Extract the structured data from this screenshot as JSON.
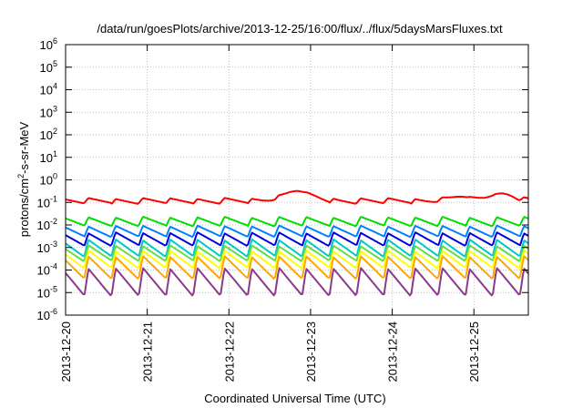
{
  "chart_data": {
    "type": "line",
    "title": "/data/run/goesPlots/archive/2013-12-25/16:00/flux/../flux/5daysMarsFluxes.txt",
    "xlabel": "Coordinated Universal Time (UTC)",
    "ylabel": {
      "base": "protons/cm",
      "sup": "2",
      "rest": "-s-sr-MeV"
    },
    "y_scale": "log",
    "ylim_exponents": [
      -6,
      6
    ],
    "y_ticks": [
      {
        "base": "10",
        "exp": "6",
        "value": 1000000
      },
      {
        "base": "10",
        "exp": "5",
        "value": 100000
      },
      {
        "base": "10",
        "exp": "4",
        "value": 10000
      },
      {
        "base": "10",
        "exp": "3",
        "value": 1000
      },
      {
        "base": "10",
        "exp": "2",
        "value": 100
      },
      {
        "base": "10",
        "exp": "1",
        "value": 10
      },
      {
        "base": "10",
        "exp": "0",
        "value": 1
      },
      {
        "base": "10",
        "exp": "-1",
        "value": 0.1
      },
      {
        "base": "10",
        "exp": "-2",
        "value": 0.01
      },
      {
        "base": "10",
        "exp": "-3",
        "value": 0.001
      },
      {
        "base": "10",
        "exp": "-4",
        "value": 0.0001
      },
      {
        "base": "10",
        "exp": "-5",
        "value": 1e-05
      },
      {
        "base": "10",
        "exp": "-6",
        "value": 1e-06
      }
    ],
    "x_ticks": [
      "2013-12-20",
      "2013-12-21",
      "2013-12-22",
      "2013-12-23",
      "2013-12-24",
      "2013-12-25"
    ],
    "xlim": [
      "2013-12-20 00:00",
      "2013-12-25 16:00"
    ],
    "grid": true,
    "series": [
      {
        "color": "#ff0000",
        "period_hours": 8,
        "low": 0.09,
        "high": 0.15,
        "bumps": [
          {
            "center": "2013-12-22 20:00",
            "peak": 0.32,
            "width_hours": 12
          },
          {
            "center": "2013-12-24 20:00",
            "peak": 0.18,
            "width_hours": 12
          },
          {
            "center": "2013-12-25 08:00",
            "peak": 0.25,
            "width_hours": 10
          }
        ]
      },
      {
        "color": "#00dd00",
        "period_hours": 8,
        "low": 0.009,
        "high": 0.022
      },
      {
        "color": "#0080ff",
        "period_hours": 8,
        "low": 0.003,
        "high": 0.009
      },
      {
        "color": "#0000dd",
        "period_hours": 8,
        "low": 0.0012,
        "high": 0.0045
      },
      {
        "color": "#00c8c8",
        "period_hours": 8,
        "low": 0.0004,
        "high": 0.0022
      },
      {
        "color": "#66dd44",
        "period_hours": 8,
        "low": 0.00025,
        "high": 0.0012
      },
      {
        "color": "#ffff00",
        "period_hours": 8,
        "low": 0.00012,
        "high": 0.0007
      },
      {
        "color": "#ffa500",
        "period_hours": 8,
        "low": 4e-05,
        "high": 0.0004
      },
      {
        "color": "#8b3a8b",
        "period_hours": 8,
        "low": 7e-06,
        "high": 0.00012
      }
    ]
  }
}
